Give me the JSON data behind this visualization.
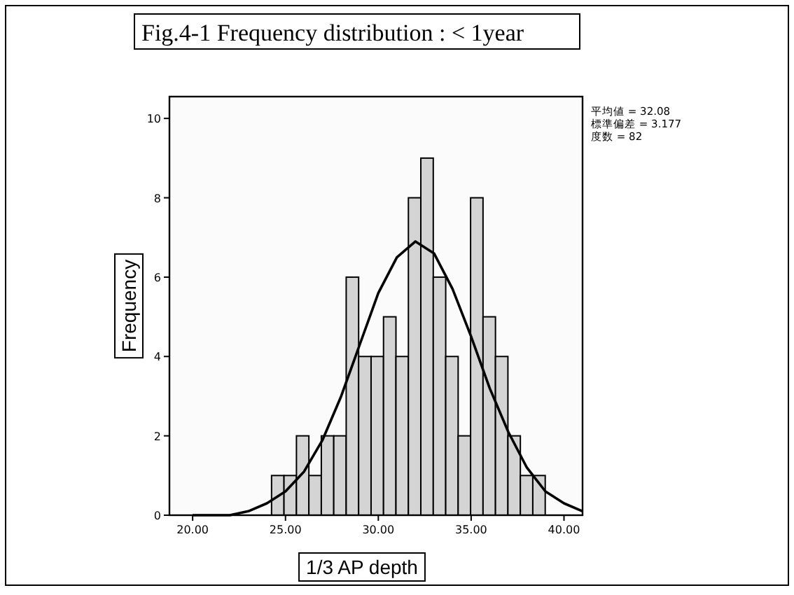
{
  "chart_data": {
    "type": "histogram",
    "title": "Fig.4-1 Frequency distribution : < 1year",
    "xlabel": "1/3 AP depth",
    "ylabel": "Frequency",
    "annotations": [
      "平均値 = 32.08",
      "標準偏差 = 3.177",
      "度数 = 82"
    ],
    "series": [
      {
        "type": "histogram",
        "color": "#d4d4d4",
        "bins": [
          24.25,
          24.92,
          25.59,
          26.26,
          26.93,
          27.6,
          28.27,
          28.94,
          29.61,
          30.28,
          30.95,
          31.62,
          32.29,
          32.96,
          33.63,
          34.3,
          34.97,
          35.64,
          36.31,
          36.98,
          37.65,
          38.32,
          38.99
        ],
        "values": [
          1,
          1,
          2,
          1,
          2,
          2,
          6,
          4,
          4,
          5,
          4,
          8,
          9,
          6,
          4,
          2,
          8,
          5,
          4,
          2,
          1,
          1
        ]
      },
      {
        "type": "line",
        "color": "#000000",
        "x": [
          20,
          21,
          22,
          23,
          24,
          25,
          26,
          27,
          28,
          29,
          30,
          31,
          32,
          33,
          34,
          35,
          36,
          37,
          38,
          39,
          40,
          41
        ],
        "values": [
          0,
          0,
          0,
          0.1,
          0.3,
          0.6,
          1.1,
          1.9,
          3,
          4.3,
          5.6,
          6.5,
          6.9,
          6.6,
          5.7,
          4.5,
          3.2,
          2.1,
          1.2,
          0.6,
          0.3,
          0.1
        ]
      }
    ],
    "xlim": [
      18.75,
      41
    ],
    "ylim": [
      0,
      10.55
    ],
    "xticks": [
      {
        "value": 20,
        "label": "20.00"
      },
      {
        "value": 25,
        "label": "25.00"
      },
      {
        "value": 30,
        "label": "30.00"
      },
      {
        "value": 35,
        "label": "35.00"
      },
      {
        "value": 40,
        "label": "40.00"
      }
    ],
    "yticks": [
      0,
      2,
      4,
      6,
      8,
      10
    ],
    "grid": false
  }
}
